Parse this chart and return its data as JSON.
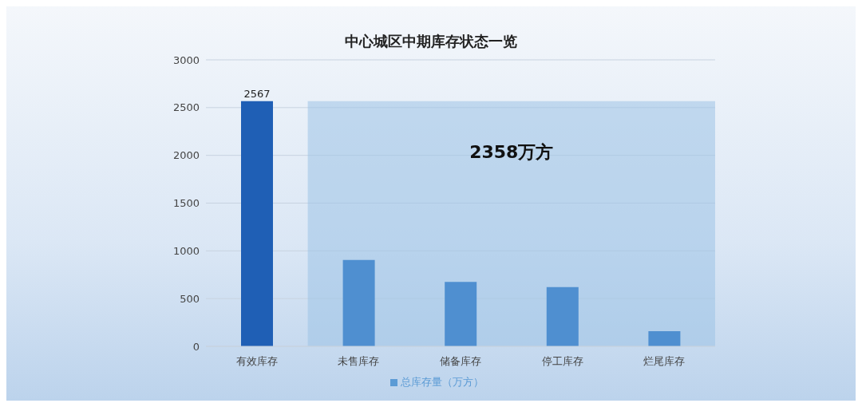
{
  "chart_data": {
    "type": "bar",
    "title": "中心城区中期库存状态一览",
    "categories": [
      "有效库存",
      "未售库存",
      "储备库存",
      "停工库存",
      "烂尾库存"
    ],
    "series": [
      {
        "name": "总库存量（万方）",
        "color": "#5b9bd5",
        "colors": [
          "#1f5fb5",
          "#4f8fd0",
          "#4f8fd0",
          "#4f8fd0",
          "#4f8fd0"
        ],
        "values": [
          2567,
          905,
          675,
          620,
          158
        ],
        "value_labels": [
          "2567",
          null,
          null,
          null,
          null
        ]
      }
    ],
    "ylim": [
      0,
      3000
    ],
    "yticks": [
      0,
      500,
      1000,
      1500,
      2000,
      2500,
      3000
    ],
    "grid": "y",
    "legend": "bottom",
    "bands": [
      {
        "axis": "x",
        "from": "未售库存",
        "to": "烂尾库存",
        "label": "2358万方",
        "color": "#9dc3e6"
      }
    ]
  }
}
